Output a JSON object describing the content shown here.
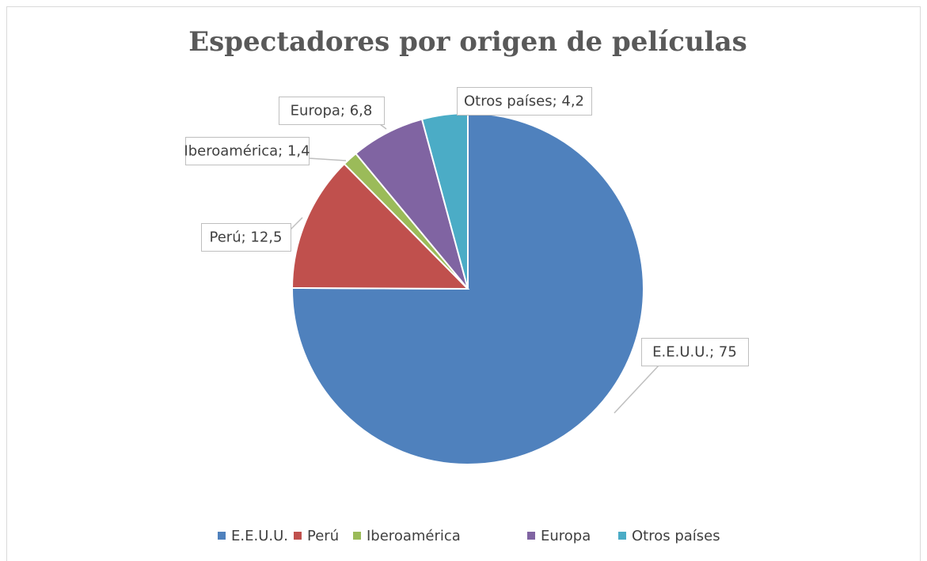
{
  "chart_data": {
    "type": "pie",
    "title": "Espectadores por origen de películas",
    "categories": [
      "E.E.U.U.",
      "Perú",
      "Iberoamérica",
      "Europa",
      "Otros países"
    ],
    "values": [
      75,
      12.5,
      1.4,
      6.8,
      4.2
    ],
    "value_labels": [
      "E.E.U.U.; 75",
      "Perú; 12,5",
      "Iberoamérica; 1,4",
      "Europa; 6,8",
      "Otros países; 4,2"
    ],
    "colors": [
      "#4f81bd",
      "#c0504d",
      "#9bbb59",
      "#8064a2",
      "#4bacc6"
    ],
    "legend": "bottom"
  }
}
